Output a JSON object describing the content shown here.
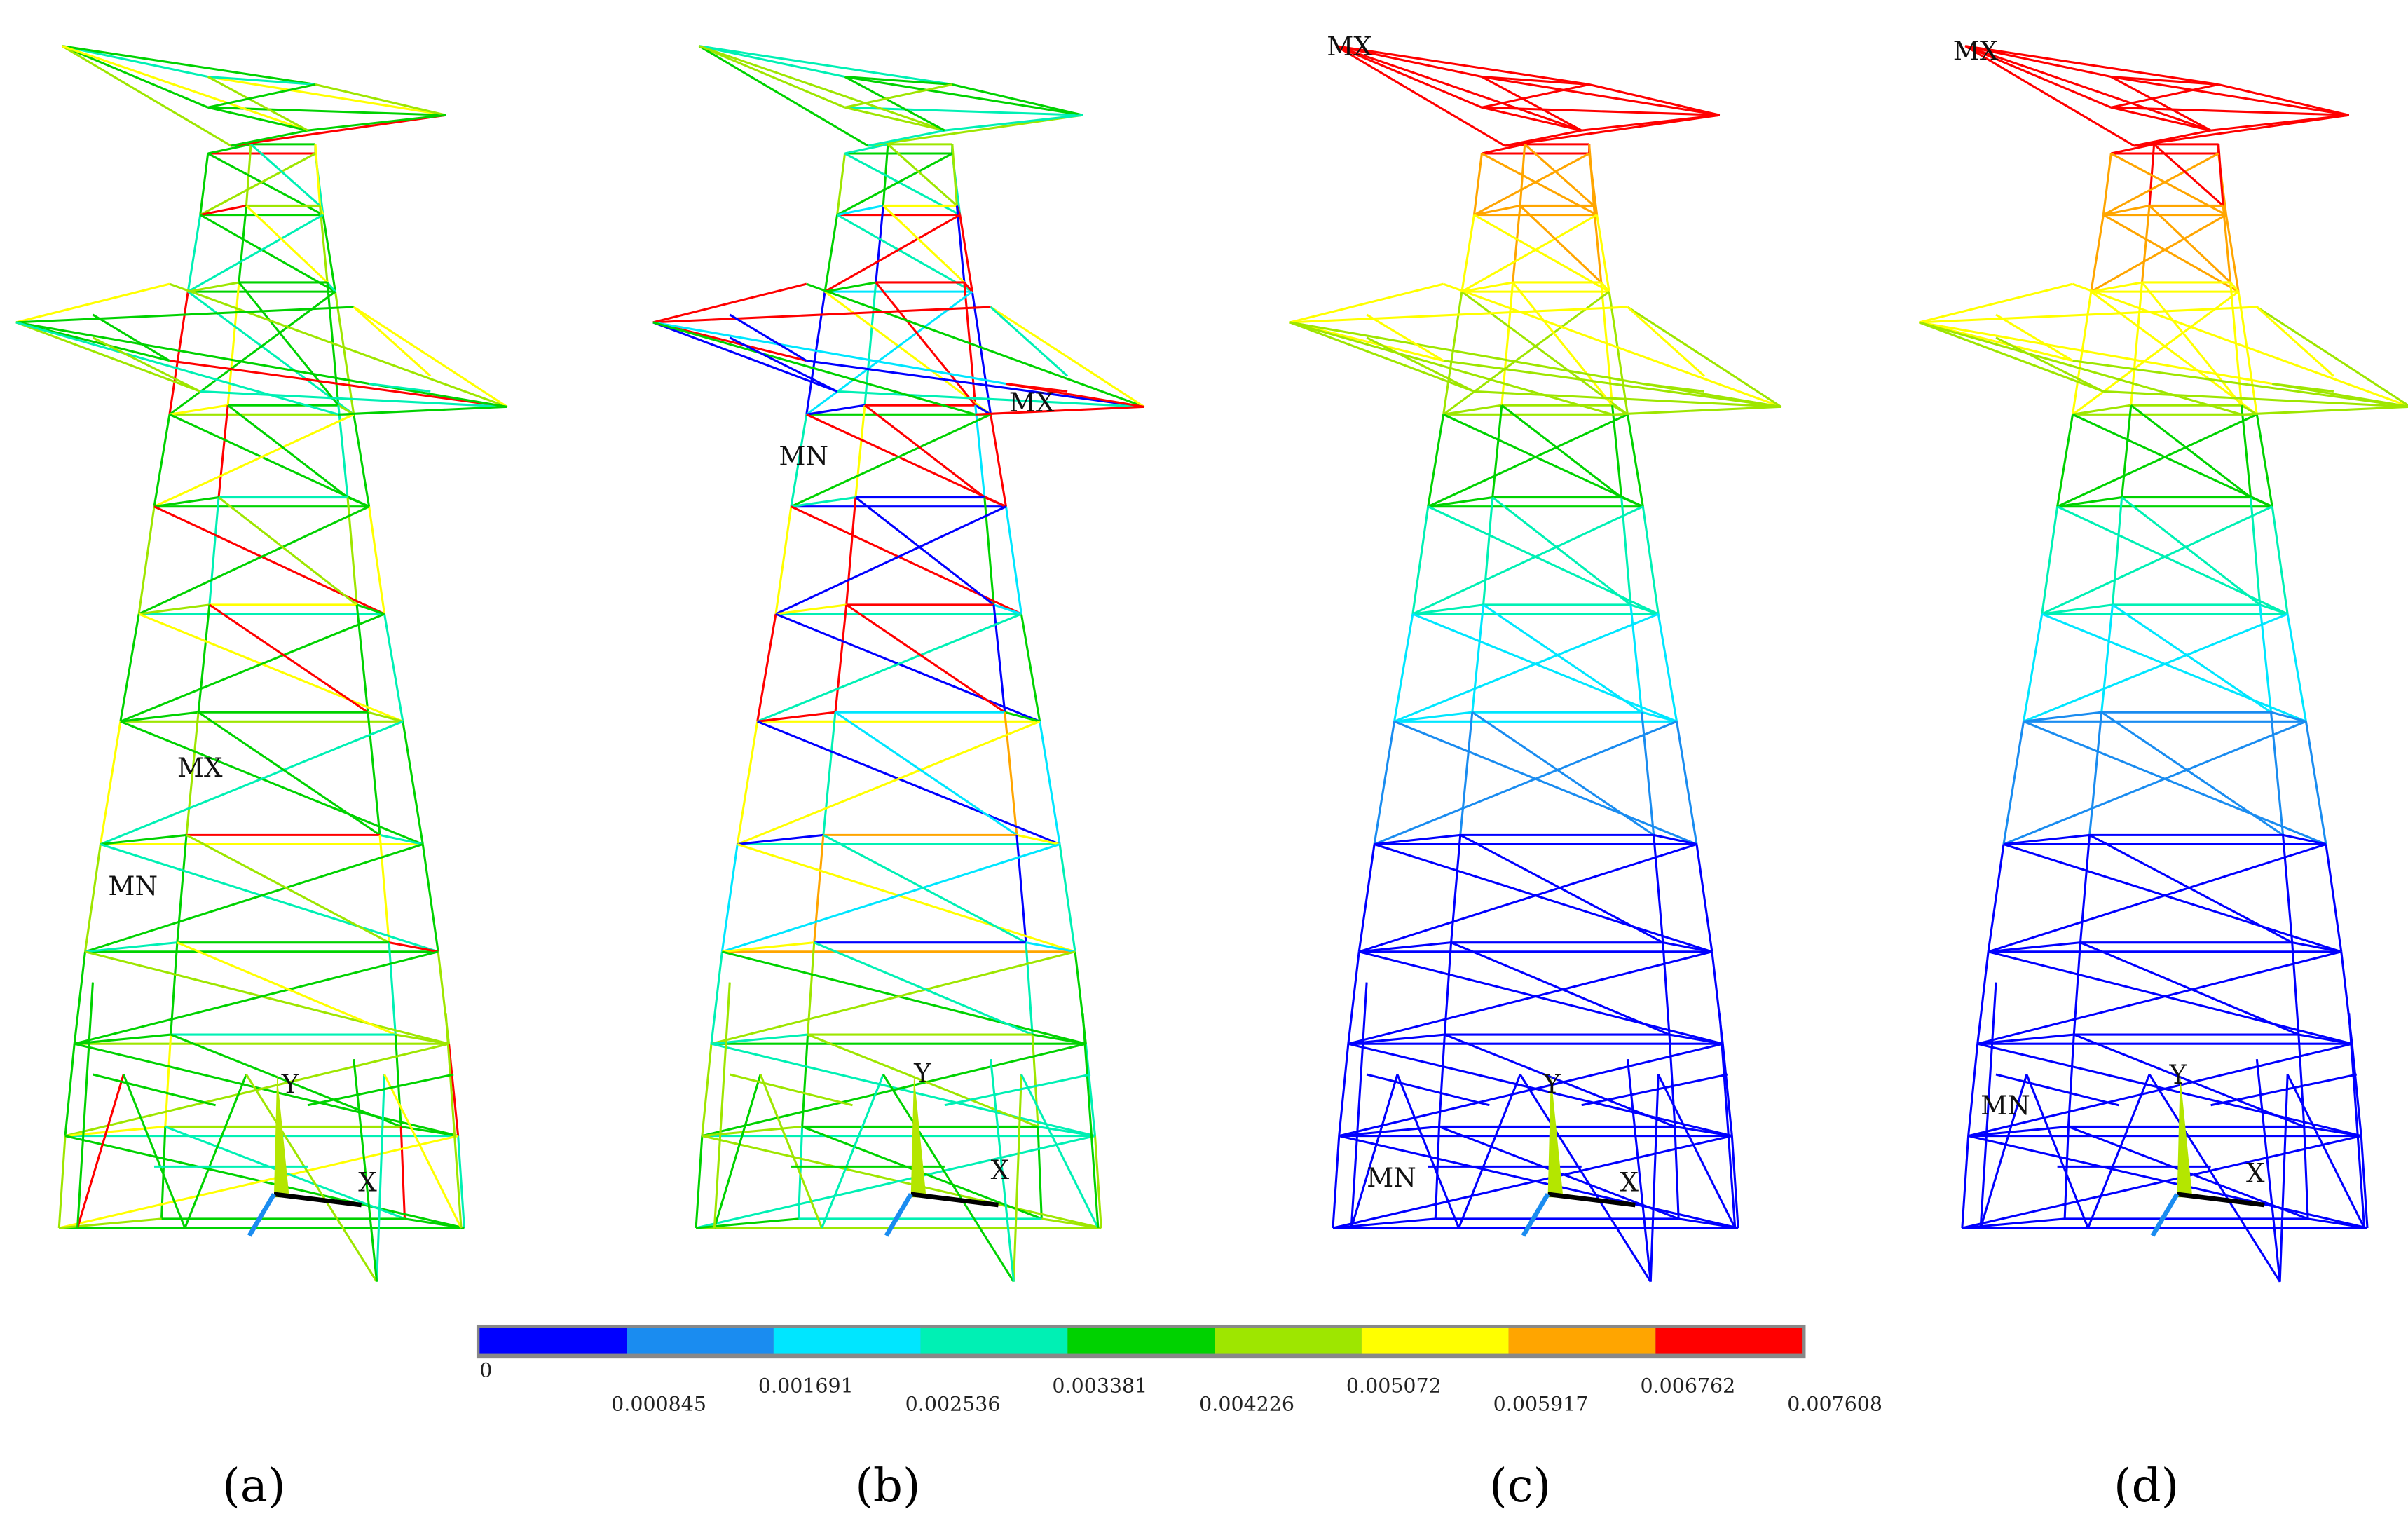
{
  "panels": [
    {
      "label": "(a)",
      "max_label": "MX",
      "min_label": "MN",
      "axis_x": "X",
      "axis_y": "Y"
    },
    {
      "label": "(b)",
      "max_label": "MX",
      "min_label": "MN",
      "axis_x": "X",
      "axis_y": "Y"
    },
    {
      "label": "(c)",
      "max_label": "MX",
      "min_label": "MN",
      "axis_x": "X",
      "axis_y": "Y"
    },
    {
      "label": "(d)",
      "max_label": "MX",
      "min_label": "MN",
      "axis_x": "X",
      "axis_y": "Y"
    }
  ],
  "legend": {
    "colors": [
      "#0000ff",
      "#1a8cf0",
      "#00e6ff",
      "#00f0b4",
      "#00d200",
      "#9ee600",
      "#ffff00",
      "#ffa500",
      "#ff0000"
    ],
    "ticks": [
      "0",
      "0.000845",
      "0.001691",
      "0.002536",
      "0.003381",
      "0.004226",
      "0.005072",
      "0.005917",
      "0.006762",
      "0.007608"
    ]
  }
}
